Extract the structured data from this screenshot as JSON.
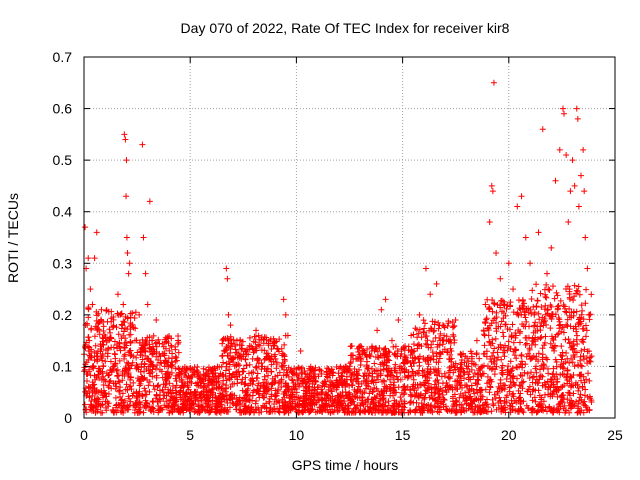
{
  "chart_data": {
    "type": "scatter",
    "title": "Day 070 of 2022, Rate Of TEC Index for receiver kir8",
    "xlabel": "GPS time / hours",
    "ylabel": "ROTI / TECUs",
    "xlim": [
      0,
      25
    ],
    "ylim": [
      0,
      0.7
    ],
    "xticks": [
      0,
      5,
      10,
      15,
      20,
      25
    ],
    "yticks": [
      0,
      0.1,
      0.2,
      0.3,
      0.4,
      0.5,
      0.6,
      0.7
    ],
    "xtick_labels": [
      "0",
      "5",
      "10",
      "15",
      "20",
      "25"
    ],
    "ytick_labels": [
      "0",
      "0.1",
      "0.2",
      "0.3",
      "0.4",
      "0.5",
      "0.6",
      "0.7"
    ],
    "grid": true,
    "marker": "+",
    "color": "#ff0000",
    "series": [
      {
        "values": [
          [
            0.05,
            0.37
          ],
          [
            0.1,
            0.29
          ],
          [
            0.2,
            0.31
          ],
          [
            0.5,
            0.31
          ],
          [
            0.6,
            0.36
          ],
          [
            0.3,
            0.25
          ],
          [
            0.4,
            0.22
          ],
          [
            0.15,
            0.18
          ],
          [
            0.25,
            0.15
          ],
          [
            0.35,
            0.12
          ],
          [
            0.45,
            0.1
          ],
          [
            0.55,
            0.14
          ],
          [
            0.7,
            0.09
          ],
          [
            0.8,
            0.12
          ],
          [
            0.9,
            0.08
          ],
          [
            1.0,
            0.11
          ],
          [
            1.2,
            0.07
          ],
          [
            1.4,
            0.1
          ],
          [
            1.6,
            0.24
          ],
          [
            1.7,
            0.2
          ],
          [
            1.9,
            0.55
          ],
          [
            1.95,
            0.54
          ],
          [
            2.0,
            0.5
          ],
          [
            1.98,
            0.43
          ],
          [
            2.02,
            0.35
          ],
          [
            2.05,
            0.32
          ],
          [
            2.1,
            0.28
          ],
          [
            2.15,
            0.3
          ],
          [
            1.85,
            0.22
          ],
          [
            2.2,
            0.18
          ],
          [
            2.4,
            0.15
          ],
          [
            2.6,
            0.2
          ],
          [
            2.75,
            0.53
          ],
          [
            2.8,
            0.35
          ],
          [
            2.9,
            0.28
          ],
          [
            3.1,
            0.42
          ],
          [
            3.0,
            0.22
          ],
          [
            3.2,
            0.15
          ],
          [
            3.4,
            0.19
          ],
          [
            3.6,
            0.12
          ],
          [
            3.8,
            0.1
          ],
          [
            4.0,
            0.08
          ],
          [
            4.3,
            0.11
          ],
          [
            4.6,
            0.09
          ],
          [
            4.9,
            0.06
          ],
          [
            5.2,
            0.05
          ],
          [
            5.5,
            0.07
          ],
          [
            5.8,
            0.04
          ],
          [
            6.2,
            0.08
          ],
          [
            6.5,
            0.12
          ],
          [
            6.7,
            0.29
          ],
          [
            6.75,
            0.27
          ],
          [
            6.8,
            0.2
          ],
          [
            6.9,
            0.18
          ],
          [
            7.2,
            0.15
          ],
          [
            7.5,
            0.12
          ],
          [
            7.8,
            0.14
          ],
          [
            8.1,
            0.17
          ],
          [
            8.4,
            0.1
          ],
          [
            8.7,
            0.12
          ],
          [
            9.0,
            0.08
          ],
          [
            9.4,
            0.23
          ],
          [
            9.5,
            0.2
          ],
          [
            9.6,
            0.16
          ],
          [
            9.8,
            0.09
          ],
          [
            10.2,
            0.13
          ],
          [
            10.5,
            0.06
          ],
          [
            10.8,
            0.08
          ],
          [
            11.2,
            0.05
          ],
          [
            11.6,
            0.09
          ],
          [
            12.0,
            0.04
          ],
          [
            12.3,
            0.06
          ],
          [
            12.6,
            0.03
          ],
          [
            12.9,
            0.07
          ],
          [
            13.2,
            0.05
          ],
          [
            13.5,
            0.12
          ],
          [
            13.8,
            0.17
          ],
          [
            14.0,
            0.21
          ],
          [
            14.2,
            0.23
          ],
          [
            14.5,
            0.15
          ],
          [
            14.8,
            0.19
          ],
          [
            15.1,
            0.12
          ],
          [
            15.4,
            0.16
          ],
          [
            15.8,
            0.2
          ],
          [
            16.1,
            0.29
          ],
          [
            16.3,
            0.24
          ],
          [
            16.6,
            0.26
          ],
          [
            16.9,
            0.18
          ],
          [
            17.3,
            0.13
          ],
          [
            17.7,
            0.09
          ],
          [
            18.1,
            0.1
          ],
          [
            18.5,
            0.15
          ],
          [
            18.9,
            0.22
          ],
          [
            19.1,
            0.38
          ],
          [
            19.2,
            0.45
          ],
          [
            19.25,
            0.44
          ],
          [
            19.3,
            0.65
          ],
          [
            19.4,
            0.32
          ],
          [
            19.6,
            0.27
          ],
          [
            19.8,
            0.22
          ],
          [
            20.0,
            0.3
          ],
          [
            20.2,
            0.25
          ],
          [
            20.4,
            0.41
          ],
          [
            20.6,
            0.43
          ],
          [
            20.8,
            0.35
          ],
          [
            21.0,
            0.3
          ],
          [
            21.2,
            0.2
          ],
          [
            21.4,
            0.36
          ],
          [
            21.6,
            0.56
          ],
          [
            21.8,
            0.28
          ],
          [
            22.0,
            0.33
          ],
          [
            22.2,
            0.46
          ],
          [
            22.4,
            0.52
          ],
          [
            22.55,
            0.6
          ],
          [
            22.6,
            0.59
          ],
          [
            22.7,
            0.51
          ],
          [
            22.8,
            0.38
          ],
          [
            22.9,
            0.44
          ],
          [
            23.0,
            0.5
          ],
          [
            23.1,
            0.45
          ],
          [
            23.2,
            0.6
          ],
          [
            23.25,
            0.58
          ],
          [
            23.3,
            0.41
          ],
          [
            23.4,
            0.47
          ],
          [
            23.5,
            0.52
          ],
          [
            23.55,
            0.44
          ],
          [
            23.6,
            0.35
          ],
          [
            23.7,
            0.29
          ],
          [
            23.8,
            0.2
          ],
          [
            23.9,
            0.12
          ]
        ]
      }
    ]
  }
}
